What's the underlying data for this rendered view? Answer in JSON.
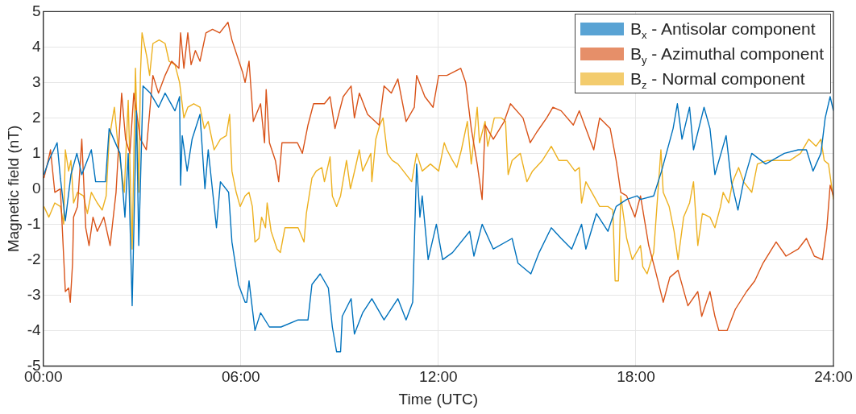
{
  "chart_data": {
    "type": "line",
    "xlabel": "Time (UTC)",
    "ylabel": "Magnetic field (nT)",
    "xlim": [
      0,
      24
    ],
    "xticks": [
      {
        "value": 0,
        "label": "00:00"
      },
      {
        "value": 6,
        "label": "06:00"
      },
      {
        "value": 12,
        "label": "12:00"
      },
      {
        "value": 18,
        "label": "18:00"
      },
      {
        "value": 24,
        "label": "24:00"
      }
    ],
    "ylim": [
      -5,
      5
    ],
    "yticks": [
      -5,
      -4,
      -3,
      -2,
      -1,
      0,
      1,
      2,
      3,
      4,
      5
    ],
    "grid": true,
    "legend": "top right",
    "series": [
      {
        "name": "B$_{x}$ - Antisolar component",
        "color": "#0072bd",
        "x": [
          0.02,
          0.17,
          0.42,
          0.52,
          0.67,
          0.84,
          1.02,
          1.17,
          1.46,
          1.59,
          1.89,
          2.0,
          2.33,
          2.48,
          2.58,
          2.7,
          2.83,
          2.9,
          3.03,
          3.25,
          3.5,
          3.7,
          4.0,
          4.14,
          4.17,
          4.22,
          4.37,
          4.52,
          4.76,
          4.91,
          5.01,
          5.26,
          5.38,
          5.63,
          5.73,
          5.93,
          6.13,
          6.18,
          6.25,
          6.43,
          6.6,
          6.87,
          7.22,
          7.74,
          8.04,
          8.16,
          8.41,
          8.66,
          8.78,
          8.91,
          9.03,
          9.08,
          9.35,
          9.45,
          9.7,
          9.98,
          10.35,
          10.77,
          11.02,
          11.22,
          11.34,
          11.44,
          11.51,
          11.69,
          11.94,
          12.13,
          12.43,
          12.95,
          13.08,
          13.33,
          13.67,
          14.24,
          14.42,
          14.81,
          15.06,
          15.43,
          15.73,
          16.05,
          16.35,
          16.48,
          16.8,
          17.15,
          17.4,
          17.72,
          18.04,
          18.14,
          18.54,
          18.78,
          19.13,
          19.26,
          19.4,
          19.63,
          19.75,
          20.07,
          20.25,
          20.4,
          20.74,
          20.9,
          21.1,
          21.27,
          21.52,
          21.94,
          22.51,
          22.93,
          23.18,
          23.38,
          23.62,
          23.75,
          23.9,
          24.0
        ],
        "values": [
          0.4,
          0.8,
          1.3,
          0.3,
          -0.9,
          0.4,
          1.0,
          0.4,
          1.1,
          0.2,
          0.2,
          1.7,
          1.0,
          -0.8,
          1.0,
          -3.3,
          2.2,
          -1.6,
          2.9,
          2.7,
          2.3,
          2.7,
          2.2,
          2.6,
          0.1,
          1.5,
          0.5,
          1.4,
          2.1,
          0.0,
          1.1,
          -1.1,
          0.2,
          -0.1,
          -1.5,
          -2.7,
          -3.2,
          -3.2,
          -2.6,
          -4.0,
          -3.5,
          -3.9,
          -3.9,
          -3.7,
          -3.7,
          -2.7,
          -2.4,
          -2.8,
          -3.9,
          -4.6,
          -4.6,
          -3.6,
          -3.1,
          -4.1,
          -3.5,
          -3.1,
          -3.7,
          -3.1,
          -3.7,
          -3.2,
          0.7,
          -0.8,
          -0.2,
          -2.0,
          -1.0,
          -2.0,
          -1.8,
          -1.2,
          -1.9,
          -1.0,
          -1.7,
          -1.4,
          -2.1,
          -2.4,
          -1.8,
          -1.1,
          -1.4,
          -1.7,
          -1.0,
          -1.7,
          -0.7,
          -1.2,
          -0.5,
          -0.3,
          -0.2,
          -0.3,
          -0.2,
          0.5,
          1.7,
          2.4,
          1.4,
          2.3,
          1.1,
          2.3,
          1.7,
          0.4,
          1.5,
          0.2,
          -0.6,
          0.2,
          1.0,
          0.7,
          1.0,
          1.1,
          1.1,
          0.5,
          1.0,
          2.0,
          2.6,
          2.2
        ]
      },
      {
        "name": "B$_{y}$ - Azimuthal component",
        "color": "#d95319",
        "x": [
          0.02,
          0.15,
          0.22,
          0.35,
          0.52,
          0.67,
          0.77,
          0.82,
          0.89,
          0.92,
          1.04,
          1.17,
          1.29,
          1.39,
          1.51,
          1.64,
          1.84,
          2.03,
          2.21,
          2.38,
          2.5,
          2.63,
          2.75,
          2.95,
          3.13,
          3.33,
          3.5,
          3.7,
          3.9,
          4.12,
          4.17,
          4.27,
          4.39,
          4.49,
          4.62,
          4.76,
          4.94,
          5.14,
          5.36,
          5.61,
          5.73,
          6.05,
          6.13,
          6.25,
          6.38,
          6.6,
          6.72,
          6.77,
          6.87,
          7.05,
          7.15,
          7.25,
          7.47,
          7.72,
          7.87,
          8.04,
          8.21,
          8.54,
          8.71,
          8.86,
          9.11,
          9.35,
          9.45,
          9.6,
          9.85,
          10.2,
          10.35,
          10.57,
          10.77,
          11.02,
          11.27,
          11.34,
          11.59,
          11.84,
          12.01,
          12.26,
          12.68,
          12.83,
          13.0,
          13.18,
          13.33,
          13.42,
          13.67,
          14.0,
          14.19,
          14.57,
          14.79,
          14.99,
          15.29,
          15.48,
          15.73,
          16.1,
          16.28,
          16.48,
          16.72,
          16.9,
          17.22,
          17.4,
          17.54,
          17.72,
          17.97,
          18.14,
          18.39,
          18.59,
          18.83,
          19.03,
          19.28,
          19.58,
          19.88,
          20.0,
          20.25,
          20.4,
          20.52,
          20.77,
          21.02,
          21.36,
          21.61,
          21.86,
          22.26,
          22.56,
          22.93,
          23.18,
          23.42,
          23.67,
          23.8,
          23.9,
          24.0
        ],
        "values": [
          0.3,
          0.8,
          1.1,
          -0.1,
          0.0,
          -2.9,
          -2.8,
          -3.2,
          -2.1,
          -0.8,
          -0.5,
          1.4,
          -1.1,
          -1.6,
          -0.8,
          -1.2,
          -0.8,
          -1.6,
          -0.1,
          2.7,
          1.4,
          1.0,
          2.7,
          1.4,
          1.1,
          3.2,
          2.7,
          3.2,
          3.6,
          3.4,
          4.4,
          3.4,
          4.4,
          3.5,
          3.9,
          3.6,
          4.4,
          4.5,
          4.4,
          4.7,
          4.2,
          3.3,
          3.0,
          3.6,
          1.9,
          2.4,
          1.3,
          2.8,
          1.3,
          0.8,
          0.2,
          1.3,
          1.3,
          1.3,
          1.0,
          1.8,
          2.4,
          2.4,
          2.6,
          1.7,
          2.6,
          2.9,
          2.0,
          2.7,
          2.1,
          1.8,
          2.9,
          2.7,
          3.1,
          1.9,
          2.3,
          3.2,
          2.6,
          2.3,
          3.2,
          3.2,
          3.4,
          3.0,
          1.7,
          0.7,
          -0.3,
          1.8,
          1.4,
          1.9,
          2.4,
          2.0,
          1.3,
          1.6,
          2.0,
          2.3,
          2.2,
          1.8,
          2.2,
          1.7,
          1.1,
          2.0,
          1.7,
          0.8,
          -0.1,
          -0.2,
          -0.8,
          -0.2,
          -1.6,
          -2.3,
          -3.2,
          -2.5,
          -2.3,
          -3.3,
          -2.9,
          -3.6,
          -2.9,
          -3.6,
          -4.0,
          -4.0,
          -3.4,
          -2.9,
          -2.6,
          -2.1,
          -1.5,
          -1.9,
          -1.7,
          -1.4,
          -1.9,
          -2.0,
          -1.1,
          0.1,
          -0.2
        ]
      },
      {
        "name": "B$_{z}$ - Normal component",
        "color": "#edb120",
        "x": [
          0.02,
          0.17,
          0.35,
          0.52,
          0.62,
          0.67,
          0.77,
          0.84,
          0.92,
          1.04,
          1.22,
          1.34,
          1.46,
          1.64,
          1.79,
          1.91,
          2.0,
          2.16,
          2.26,
          2.38,
          2.46,
          2.58,
          2.7,
          2.8,
          2.9,
          2.95,
          3.0,
          3.15,
          3.23,
          3.33,
          3.52,
          3.7,
          3.82,
          4.0,
          4.14,
          4.27,
          4.39,
          4.57,
          4.76,
          4.89,
          5.01,
          5.19,
          5.38,
          5.56,
          5.66,
          5.73,
          5.86,
          5.98,
          6.13,
          6.25,
          6.35,
          6.43,
          6.55,
          6.63,
          6.75,
          6.8,
          6.92,
          7.1,
          7.2,
          7.34,
          7.47,
          7.74,
          7.92,
          7.99,
          8.16,
          8.29,
          8.46,
          8.54,
          8.71,
          8.78,
          8.91,
          9.03,
          9.21,
          9.33,
          9.48,
          9.6,
          9.7,
          9.95,
          9.98,
          10.1,
          10.22,
          10.32,
          10.45,
          10.6,
          10.77,
          10.94,
          11.19,
          11.34,
          11.51,
          11.76,
          12.01,
          12.18,
          12.26,
          12.43,
          12.56,
          12.7,
          12.88,
          13.0,
          13.18,
          13.25,
          13.42,
          13.5,
          13.7,
          13.92,
          14.04,
          14.12,
          14.24,
          14.49,
          14.69,
          14.86,
          15.16,
          15.43,
          15.66,
          15.91,
          16.15,
          16.28,
          16.35,
          16.48,
          16.72,
          16.9,
          17.15,
          17.3,
          17.37,
          17.47,
          17.54,
          17.72,
          17.89,
          18.14,
          18.21,
          18.34,
          18.54,
          18.76,
          18.83,
          19.01,
          19.16,
          19.28,
          19.45,
          19.63,
          19.75,
          19.88,
          20.02,
          20.25,
          20.4,
          20.57,
          20.65,
          20.82,
          20.94,
          21.12,
          21.27,
          21.52,
          21.69,
          22.01,
          22.36,
          22.68,
          23.0,
          23.25,
          23.47,
          23.62,
          23.72,
          23.85,
          24.0
        ],
        "values": [
          -0.5,
          -0.8,
          -0.4,
          -0.5,
          -1.0,
          1.1,
          0.5,
          0.8,
          -0.4,
          -0.1,
          -0.2,
          -0.7,
          -0.1,
          -0.4,
          -0.6,
          -0.2,
          1.4,
          2.3,
          1.3,
          0.5,
          -0.1,
          2.5,
          -1.7,
          3.4,
          -0.1,
          3.2,
          4.4,
          3.7,
          3.2,
          4.1,
          4.2,
          4.1,
          3.6,
          3.5,
          3.0,
          2.0,
          2.3,
          2.4,
          2.3,
          1.7,
          1.9,
          1.1,
          1.4,
          1.5,
          2.1,
          0.5,
          -0.1,
          -0.5,
          -0.2,
          -0.1,
          -0.5,
          -1.5,
          -1.4,
          -0.8,
          -1.1,
          -0.4,
          -1.2,
          -1.7,
          -1.8,
          -1.1,
          -1.1,
          -1.1,
          -1.5,
          -0.7,
          0.3,
          0.5,
          0.6,
          0.2,
          0.9,
          -0.2,
          -0.5,
          -0.2,
          0.8,
          0.0,
          0.6,
          1.1,
          0.5,
          1.0,
          0.2,
          1.4,
          1.8,
          2.0,
          1.0,
          0.8,
          0.7,
          0.5,
          0.2,
          1.0,
          0.5,
          0.7,
          0.5,
          1.3,
          1.1,
          0.8,
          0.6,
          1.1,
          1.9,
          0.7,
          2.3,
          1.3,
          1.9,
          1.2,
          2.0,
          2.0,
          1.9,
          0.4,
          0.8,
          1.0,
          0.2,
          0.5,
          0.8,
          1.2,
          0.8,
          0.8,
          0.5,
          0.6,
          -0.4,
          0.2,
          -0.2,
          -0.5,
          -0.5,
          -0.6,
          -2.6,
          -2.6,
          -0.2,
          -1.4,
          -2.0,
          -1.6,
          -2.2,
          -2.4,
          -1.8,
          1.1,
          -0.1,
          -0.5,
          -1.2,
          -2.0,
          -0.8,
          -0.4,
          0.2,
          -1.6,
          -0.7,
          -0.8,
          -1.1,
          -0.5,
          -0.1,
          -0.4,
          0.2,
          0.6,
          0.2,
          -0.1,
          0.7,
          0.8,
          0.8,
          0.8,
          1.0,
          1.4,
          1.2,
          1.4,
          0.8,
          0.7,
          -0.3
        ]
      }
    ]
  }
}
